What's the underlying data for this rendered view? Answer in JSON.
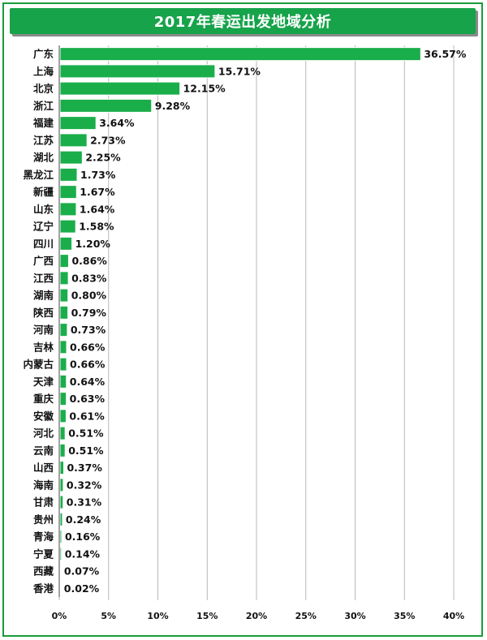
{
  "chart_data": {
    "type": "bar",
    "orientation": "horizontal",
    "title": "2017年春运出发地域分析",
    "categories": [
      "广东",
      "上海",
      "北京",
      "浙江",
      "福建",
      "江苏",
      "湖北",
      "黑龙江",
      "新疆",
      "山东",
      "辽宁",
      "四川",
      "广西",
      "江西",
      "湖南",
      "陕西",
      "河南",
      "吉林",
      "内蒙古",
      "天津",
      "重庆",
      "安徽",
      "河北",
      "云南",
      "山西",
      "海南",
      "甘肃",
      "贵州",
      "青海",
      "宁夏",
      "西藏",
      "香港"
    ],
    "values": [
      36.57,
      15.71,
      12.15,
      9.28,
      3.64,
      2.73,
      2.25,
      1.73,
      1.67,
      1.64,
      1.58,
      1.2,
      0.86,
      0.83,
      0.8,
      0.79,
      0.73,
      0.66,
      0.66,
      0.64,
      0.63,
      0.61,
      0.51,
      0.51,
      0.37,
      0.32,
      0.31,
      0.24,
      0.16,
      0.14,
      0.07,
      0.02
    ],
    "value_labels": [
      "36.57%",
      "15.71%",
      "12.15%",
      "9.28%",
      "3.64%",
      "2.73%",
      "2.25%",
      "1.73%",
      "1.67%",
      "1.64%",
      "1.58%",
      "1.20%",
      "0.86%",
      "0.83%",
      "0.80%",
      "0.79%",
      "0.73%",
      "0.66%",
      "0.66%",
      "0.64%",
      "0.63%",
      "0.61%",
      "0.51%",
      "0.51%",
      "0.37%",
      "0.32%",
      "0.31%",
      "0.24%",
      "0.16%",
      "0.14%",
      "0.07%",
      "0.02%"
    ],
    "xlim": [
      0,
      40
    ],
    "xticks": [
      "0%",
      "5%",
      "10%",
      "15%",
      "20%",
      "25%",
      "30%",
      "35%",
      "40%"
    ],
    "grid": true,
    "bar_color": "#1aae4a",
    "bar_border_color": "#ffffff",
    "title_background": "#16a34a",
    "frame_color": "#1a9c3a"
  }
}
